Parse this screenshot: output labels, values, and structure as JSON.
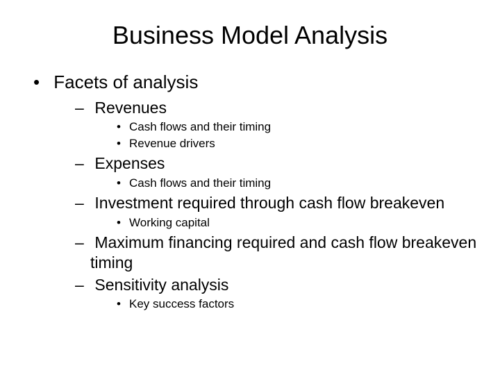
{
  "slide": {
    "title": "Business Model Analysis",
    "background_color": "#ffffff",
    "text_color": "#000000",
    "title_fontsize": 36,
    "level1_fontsize": 26,
    "level2_fontsize": 23,
    "level3_fontsize": 17,
    "bullets": {
      "l1_0": "Facets of analysis",
      "l2_0": "Revenues",
      "l3_0": "Cash flows and their timing",
      "l3_1": "Revenue drivers",
      "l2_1": "Expenses",
      "l3_2": "Cash flows and their timing",
      "l2_2": "Investment required through cash flow breakeven",
      "l3_3": "Working capital",
      "l2_3": "Maximum financing required and cash flow breakeven timing",
      "l2_4": "Sensitivity analysis",
      "l3_4": "Key success factors"
    }
  }
}
